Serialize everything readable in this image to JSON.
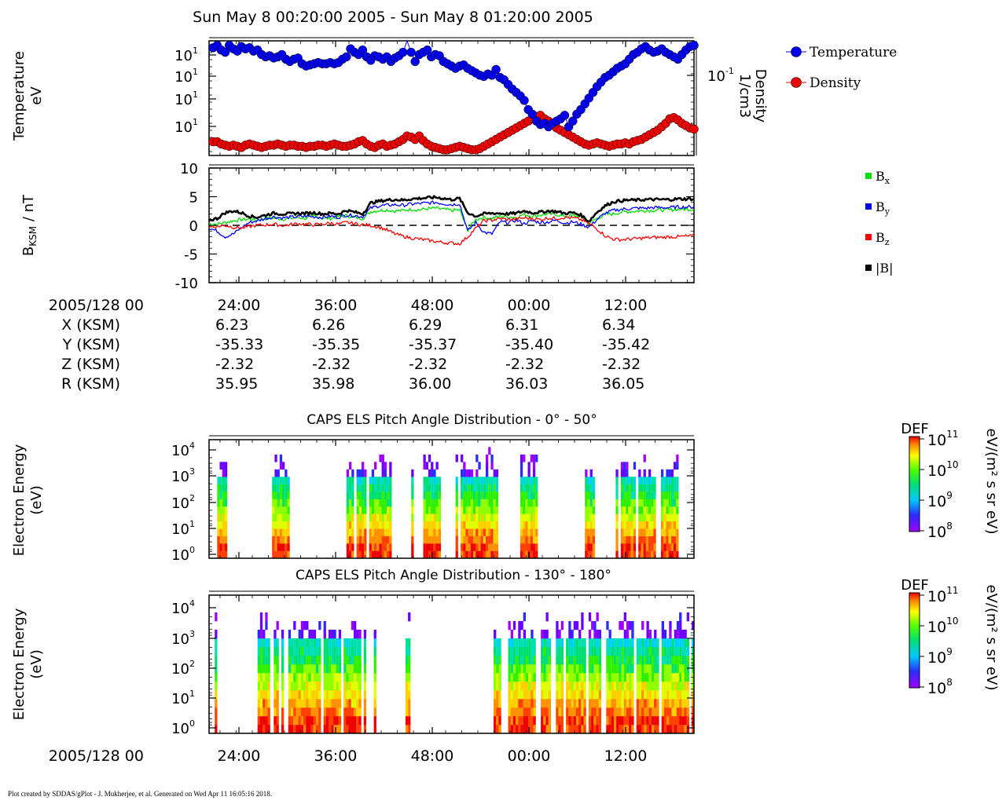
{
  "title": "Sun May 8 00:20:00 2005 - Sun May 8 01:20:00 2005",
  "footer": "Plot created by SDDAS/gPlot - J. Mukherjee, et al.  Generated on Wed Apr 11 16:05:16 2018.",
  "time_ticks": [
    "24:00",
    "36:00",
    "48:00",
    "00:00",
    "12:00"
  ],
  "ephemeris": {
    "header": "2005/128 00",
    "rows": [
      {
        "label": "X (KSM)",
        "values": [
          "6.23",
          "6.26",
          "6.29",
          "6.31",
          "6.34"
        ]
      },
      {
        "label": "Y (KSM)",
        "values": [
          "-35.33",
          "-35.35",
          "-35.37",
          "-35.40",
          "-35.42"
        ]
      },
      {
        "label": "Z (KSM)",
        "values": [
          "-2.32",
          "-2.32",
          "-2.32",
          "-2.32",
          "-2.32"
        ]
      },
      {
        "label": "R (KSM)",
        "values": [
          "35.95",
          "35.98",
          "36.00",
          "36.03",
          "36.05"
        ]
      }
    ]
  },
  "bottom_date": "2005/128 00",
  "colors": {
    "temperature": "#0000ee",
    "density": "#ee0000",
    "bx": "#00dd00",
    "by": "#0000ff",
    "bz": "#ff0000",
    "btot": "#000000"
  },
  "chart_data": [
    {
      "type": "line",
      "name": "plasma-moments",
      "ylabel": [
        "Temperature",
        "eV"
      ],
      "y2label": [
        "Density",
        "1/cm3"
      ],
      "y_ticks": [
        "10",
        "10",
        "10",
        "10"
      ],
      "y_tick_exps": [
        "1",
        "1",
        "1",
        "1"
      ],
      "y2_ticks": [
        "10"
      ],
      "y2_tick_exps": [
        "-1"
      ],
      "x_ticks": [
        "24:00",
        "36:00",
        "48:00",
        "00:00",
        "12:00"
      ],
      "legend": [
        "Temperature",
        "Density"
      ],
      "x": [
        0.5,
        1,
        1.5,
        2,
        2.5,
        3,
        3.5,
        4,
        4.5,
        5,
        5.5,
        6,
        6.5,
        7,
        7.5,
        8,
        8.5,
        9,
        9.5,
        10,
        10.5,
        11,
        11.5,
        12,
        12.5,
        13,
        13.5,
        14,
        14.5,
        15,
        15.5,
        16,
        16.5,
        17,
        17.5,
        18,
        18.5,
        19,
        19.5,
        20,
        20.5,
        21,
        21.5,
        22,
        22.5,
        23,
        23.5,
        24,
        24.5,
        25,
        25.5,
        26,
        26.5,
        27,
        27.5,
        28,
        28.5,
        29,
        29.5,
        30,
        30.5,
        31,
        31.5,
        32,
        32.5,
        33,
        33.5,
        34,
        34.5,
        35,
        35.5,
        36,
        36.5,
        37,
        37.5,
        38,
        38.5,
        39,
        39.5,
        40,
        40.5,
        41,
        41.5,
        42,
        42.5,
        43,
        43.5,
        44,
        44.5,
        45,
        45.5,
        46,
        46.5,
        47,
        47.5,
        48,
        48.5,
        49,
        49.5,
        50,
        50.5,
        51,
        51.5,
        52,
        52.5,
        53,
        53.5,
        54,
        54.5,
        55,
        55.5,
        56,
        56.5,
        57,
        57.5,
        58,
        58.5,
        59,
        59.5,
        60
      ],
      "series": [
        {
          "name": "Temperature",
          "values": [
            0.94,
            0.96,
            0.92,
            0.9,
            0.96,
            0.93,
            0.91,
            0.95,
            0.93,
            0.94,
            0.91,
            0.92,
            0.88,
            0.86,
            0.87,
            0.85,
            0.86,
            0.88,
            0.84,
            0.82,
            0.84,
            0.85,
            0.8,
            0.78,
            0.79,
            0.8,
            0.81,
            0.8,
            0.8,
            0.81,
            0.8,
            0.81,
            0.84,
            0.86,
            0.93,
            0.9,
            0.88,
            0.92,
            0.86,
            0.83,
            0.87,
            0.86,
            0.84,
            0.86,
            0.82,
            0.85,
            0.87,
            0.9,
            1.05,
            0.9,
            0.82,
            0.88,
            0.9,
            0.92,
            0.86,
            0.88,
            0.87,
            0.82,
            0.8,
            0.78,
            0.76,
            0.78,
            0.79,
            0.76,
            0.74,
            0.72,
            0.7,
            0.69,
            0.71,
            0.7,
            0.75,
            0.68,
            0.66,
            0.62,
            0.58,
            0.55,
            0.52,
            0.48,
            0.4,
            0.36,
            0.3,
            0.27,
            0.28,
            0.25,
            0.28,
            0.3,
            0.32,
            0.35,
            0.25,
            0.3,
            0.36,
            0.4,
            0.45,
            0.5,
            0.55,
            0.6,
            0.64,
            0.68,
            0.7,
            0.73,
            0.76,
            0.78,
            0.8,
            0.84,
            0.88,
            0.9,
            0.93,
            0.95,
            0.92,
            0.9,
            0.91,
            0.93,
            0.9,
            0.88,
            0.86,
            0.84,
            0.88,
            0.92,
            0.95,
            0.96
          ]
        },
        {
          "name": "Density",
          "values": [
            0.12,
            0.12,
            0.1,
            0.09,
            0.08,
            0.09,
            0.08,
            0.07,
            0.09,
            0.1,
            0.09,
            0.08,
            0.07,
            0.08,
            0.09,
            0.09,
            0.1,
            0.09,
            0.08,
            0.09,
            0.09,
            0.08,
            0.08,
            0.07,
            0.08,
            0.08,
            0.09,
            0.09,
            0.08,
            0.09,
            0.1,
            0.09,
            0.08,
            0.08,
            0.09,
            0.1,
            0.12,
            0.13,
            0.1,
            0.08,
            0.07,
            0.09,
            0.1,
            0.08,
            0.09,
            0.1,
            0.12,
            0.14,
            0.17,
            0.16,
            0.14,
            0.17,
            0.13,
            0.1,
            0.08,
            0.07,
            0.06,
            0.05,
            0.05,
            0.06,
            0.07,
            0.08,
            0.07,
            0.06,
            0.05,
            0.05,
            0.06,
            0.08,
            0.1,
            0.12,
            0.14,
            0.16,
            0.18,
            0.2,
            0.22,
            0.24,
            0.26,
            0.28,
            0.3,
            0.32,
            0.34,
            0.35,
            0.32,
            0.3,
            0.27,
            0.24,
            0.22,
            0.2,
            0.18,
            0.16,
            0.14,
            0.12,
            0.1,
            0.09,
            0.1,
            0.11,
            0.1,
            0.09,
            0.08,
            0.09,
            0.1,
            0.1,
            0.11,
            0.1,
            0.12,
            0.13,
            0.14,
            0.16,
            0.18,
            0.2,
            0.22,
            0.25,
            0.28,
            0.32,
            0.33,
            0.31,
            0.28,
            0.26,
            0.24,
            0.23
          ]
        }
      ]
    },
    {
      "type": "line",
      "name": "magnetic-field",
      "ylabel": "B",
      "ylabel_sub": "KSM",
      "ylabel_unit": " / nT",
      "ylim": [
        -10,
        10
      ],
      "y_ticks": [
        "10",
        "5",
        "0",
        "-5",
        "-10"
      ],
      "x_ticks": [
        "24:00",
        "36:00",
        "48:00",
        "00:00",
        "12:00"
      ],
      "legend": [
        {
          "main": "B",
          "sub": "x"
        },
        {
          "main": "B",
          "sub": "y"
        },
        {
          "main": "B",
          "sub": "z"
        },
        {
          "main": "|B|",
          "sub": ""
        }
      ],
      "x": [
        0,
        1,
        2,
        3,
        4,
        5,
        6,
        7,
        8,
        9,
        10,
        11,
        12,
        13,
        14,
        15,
        16,
        17,
        18,
        19,
        20,
        21,
        22,
        23,
        24,
        25,
        26,
        27,
        28,
        29,
        30,
        31,
        32,
        33,
        34,
        35,
        36,
        37,
        38,
        39,
        40,
        41,
        42,
        43,
        44,
        45,
        46,
        47,
        48,
        49,
        50,
        51,
        52,
        53,
        54,
        55,
        56,
        57,
        58,
        59,
        60
      ],
      "series": [
        {
          "name": "Bx",
          "values": [
            0.3,
            0.2,
            0.5,
            0.8,
            1.0,
            1.1,
            0.9,
            1.2,
            1.3,
            1.1,
            1.2,
            1.4,
            1.2,
            1.6,
            1.3,
            1.2,
            1.5,
            1.7,
            1.4,
            1.2,
            2.4,
            2.6,
            2.7,
            2.5,
            2.6,
            2.8,
            2.7,
            2.9,
            3.0,
            2.8,
            2.6,
            2.7,
            -0.8,
            1.0,
            1.4,
            1.2,
            1.6,
            1.5,
            1.4,
            1.9,
            1.6,
            1.8,
            2.0,
            1.9,
            1.5,
            1.7,
            1.5,
            0.4,
            1.2,
            1.9,
            2.0,
            2.3,
            2.4,
            2.5,
            2.6,
            2.6,
            2.7,
            2.7,
            2.8,
            2.8,
            2.8
          ]
        },
        {
          "name": "By",
          "values": [
            -0.5,
            -1.0,
            -2.0,
            -1.5,
            -0.4,
            0.5,
            0.8,
            1.2,
            1.5,
            1.3,
            1.4,
            1.5,
            1.6,
            1.5,
            1.4,
            1.6,
            1.4,
            1.8,
            1.7,
            1.5,
            3.0,
            3.4,
            3.5,
            3.6,
            3.5,
            3.7,
            3.8,
            3.9,
            4.0,
            3.8,
            3.6,
            3.8,
            -1.0,
            0.5,
            -1.2,
            -1.5,
            0.6,
            0.5,
            0.9,
            0.3,
            0.8,
            0.5,
            0.6,
            0.9,
            0.4,
            0.6,
            0.2,
            -0.3,
            1.0,
            2.1,
            2.6,
            2.8,
            2.9,
            3.0,
            3.0,
            3.1,
            3.1,
            3.1,
            3.2,
            3.2,
            3.2
          ]
        },
        {
          "name": "Bz",
          "values": [
            -0.3,
            -0.2,
            0.0,
            -0.3,
            -0.5,
            -0.2,
            0.0,
            0.1,
            0.2,
            0.0,
            0.1,
            0.3,
            0.2,
            0.1,
            0.2,
            0.4,
            0.2,
            0.5,
            0.3,
            0.1,
            0.0,
            -0.3,
            -0.8,
            -1.5,
            -1.9,
            -2.2,
            -2.4,
            -2.6,
            -2.8,
            -3.0,
            -3.1,
            -3.2,
            -2.0,
            -0.5,
            0.8,
            0.9,
            1.2,
            1.0,
            1.1,
            1.3,
            1.2,
            1.0,
            1.3,
            1.2,
            1.4,
            1.3,
            1.0,
            0.3,
            -0.6,
            -1.8,
            -2.4,
            -2.5,
            -2.4,
            -2.3,
            -2.2,
            -2.1,
            -2.1,
            -2.0,
            -2.0,
            -1.9,
            -1.9
          ]
        },
        {
          "name": "|B|",
          "values": [
            0.9,
            1.2,
            2.2,
            2.5,
            2.2,
            1.6,
            1.4,
            1.8,
            2.1,
            2.0,
            2.0,
            2.1,
            2.1,
            2.2,
            2.0,
            2.1,
            2.0,
            2.6,
            2.3,
            2.0,
            3.9,
            4.2,
            4.4,
            4.5,
            4.4,
            4.6,
            4.7,
            4.8,
            4.9,
            4.7,
            4.5,
            4.7,
            2.2,
            1.6,
            2.0,
            2.1,
            2.1,
            2.0,
            2.1,
            2.5,
            2.2,
            2.3,
            2.5,
            2.4,
            2.1,
            2.2,
            1.8,
            0.7,
            2.3,
            3.4,
            4.1,
            4.3,
            4.4,
            4.4,
            4.5,
            4.5,
            4.5,
            4.5,
            4.6,
            4.6,
            4.6
          ]
        }
      ]
    },
    {
      "type": "heatmap",
      "name": "pad-0-50",
      "title": "CAPS ELS Pitch Angle Distribution - 0° - 50°",
      "ylabel": [
        "Electron Energy",
        "(eV)"
      ],
      "y_ticks": [
        "10",
        "10",
        "10",
        "10",
        "10"
      ],
      "y_tick_exps": [
        "4",
        "3",
        "2",
        "1",
        "0"
      ],
      "colorbar": {
        "label": "DEF",
        "unit": "eV/(m² s sr eV)",
        "ticks": [
          "10",
          "10",
          "10",
          "10"
        ],
        "tick_exps": [
          "11",
          "10",
          "9",
          "8"
        ]
      },
      "data_segments": [
        [
          1.0,
          2.2
        ],
        [
          7.8,
          9.8
        ],
        [
          17.0,
          22.5
        ],
        [
          24.7,
          25.5
        ],
        [
          26.5,
          28.5
        ],
        [
          30.5,
          35.5
        ],
        [
          38.5,
          40.5
        ],
        [
          46.5,
          47.5
        ],
        [
          50.0,
          58.0
        ]
      ]
    },
    {
      "type": "heatmap",
      "name": "pad-130-180",
      "title": "CAPS ELS Pitch Angle Distribution - 130° - 180°",
      "ylabel": [
        "Electron Energy",
        "(eV)"
      ],
      "y_ticks": [
        "10",
        "10",
        "10",
        "10",
        "10"
      ],
      "y_tick_exps": [
        "4",
        "3",
        "2",
        "1",
        "0"
      ],
      "colorbar": {
        "label": "DEF",
        "unit": "eV/(m² s sr eV)",
        "ticks": [
          "10",
          "10",
          "10",
          "10"
        ],
        "tick_exps": [
          "11",
          "10",
          "9",
          "8"
        ]
      },
      "data_segments": [
        [
          0.7,
          1.0
        ],
        [
          6.0,
          7.5
        ],
        [
          8.0,
          9.0
        ],
        [
          9.8,
          20.5
        ],
        [
          24.3,
          25.2
        ],
        [
          35.2,
          36.0
        ],
        [
          37.0,
          60.0
        ]
      ]
    }
  ]
}
